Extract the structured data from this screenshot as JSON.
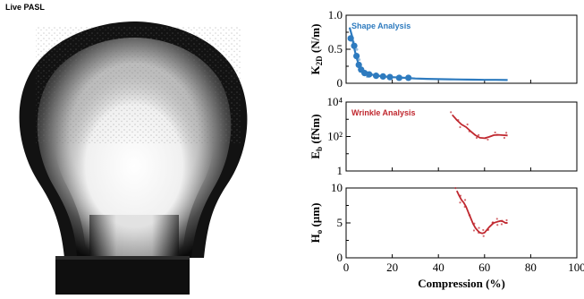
{
  "page": {
    "title": "Live PASL"
  },
  "colors": {
    "shape": "#2e7bbf",
    "wrinkle": "#c0282f"
  },
  "chart_data": [
    {
      "type": "scatter",
      "title": "",
      "legend": "Shape Analysis",
      "xlabel": "",
      "ylabel": "K_2D (N/m)",
      "ylabel_main": "K",
      "ylabel_sub": "2D",
      "ylabel_unit": " (N/m)",
      "xlim": [
        0,
        100
      ],
      "ylim": [
        0,
        1.0
      ],
      "yscale": "linear",
      "yticks": [
        0,
        0.5,
        1.0
      ],
      "ytick_labels": [
        "0",
        "0.5",
        "1.0"
      ],
      "series": [
        {
          "marker": "circle",
          "x": [
            2,
            3.5,
            4.5,
            5.5,
            6.5,
            8,
            10,
            13,
            16,
            19,
            23,
            27
          ],
          "y": [
            0.66,
            0.55,
            0.4,
            0.27,
            0.2,
            0.15,
            0.13,
            0.11,
            0.1,
            0.09,
            0.08,
            0.08
          ]
        },
        {
          "marker": "line",
          "x": [
            1.5,
            2.5,
            3.5,
            4.5,
            5.5,
            7,
            9,
            12,
            16,
            20,
            25,
            30,
            35,
            40,
            45,
            50,
            55,
            60,
            65,
            70
          ],
          "y": [
            0.82,
            0.7,
            0.52,
            0.38,
            0.27,
            0.2,
            0.15,
            0.12,
            0.1,
            0.09,
            0.08,
            0.07,
            0.065,
            0.06,
            0.058,
            0.055,
            0.053,
            0.05,
            0.05,
            0.048
          ]
        }
      ]
    },
    {
      "type": "scatter",
      "title": "",
      "legend": "Wrinkle Analysis",
      "xlabel": "",
      "ylabel": "E_b (fNm)",
      "ylabel_main": "E",
      "ylabel_sub": "b",
      "ylabel_unit": " (fNm)",
      "xlim": [
        0,
        100
      ],
      "ylim": [
        1,
        10000
      ],
      "yscale": "log",
      "yticks": [
        1,
        100,
        10000
      ],
      "ytick_labels": [
        "1",
        "10²",
        "10⁴"
      ],
      "series": [
        {
          "marker": "line",
          "x": [
            46,
            48,
            50,
            52,
            54,
            56,
            58,
            60,
            62,
            64,
            66,
            68,
            70
          ],
          "y": [
            1800,
            900,
            500,
            350,
            200,
            120,
            85,
            80,
            95,
            120,
            125,
            120,
            115
          ]
        }
      ]
    },
    {
      "type": "scatter",
      "title": "",
      "legend": "",
      "xlabel": "Compression (%)",
      "ylabel": "H_o (µm)",
      "ylabel_main": "H",
      "ylabel_sub": "o",
      "ylabel_unit": " (µm)",
      "xlim": [
        0,
        100
      ],
      "xticks": [
        0,
        20,
        40,
        60,
        80,
        100
      ],
      "xtick_labels": [
        "0",
        "20",
        "40",
        "60",
        "80",
        "100"
      ],
      "ylim": [
        0,
        10
      ],
      "yscale": "linear",
      "yticks": [
        0,
        5,
        10
      ],
      "ytick_labels": [
        "0",
        "5",
        "10"
      ],
      "series": [
        {
          "marker": "line",
          "x": [
            48,
            49,
            50,
            51,
            52,
            53,
            54,
            55,
            56,
            57,
            58,
            59,
            60,
            61,
            62,
            63,
            64,
            65,
            66,
            67,
            68,
            69,
            70
          ],
          "y": [
            9.6,
            8.9,
            8.3,
            7.9,
            7.3,
            6.5,
            5.7,
            4.9,
            4.3,
            3.9,
            3.6,
            3.5,
            3.6,
            4.0,
            4.4,
            4.7,
            5.0,
            5.1,
            5.2,
            5.3,
            5.2,
            5.0,
            5.0
          ]
        }
      ]
    }
  ]
}
